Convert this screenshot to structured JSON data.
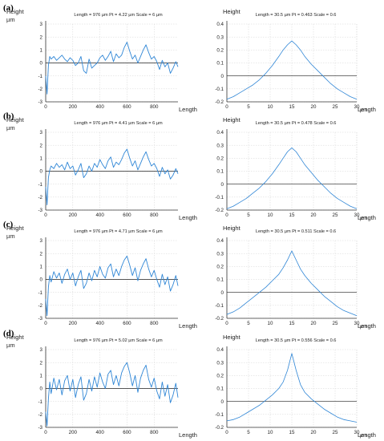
{
  "chart_data": [
    {
      "panel_label": "(a)",
      "profile": {
        "type": "line",
        "header": "Length = 976 µm   Pt = 4.22 µm   Scale = 6 µm",
        "ylabel": "Height",
        "yunit": "µm",
        "xlabel": "Length",
        "xlim": [
          0,
          976
        ],
        "ylim": [
          -3,
          3
        ],
        "xticks": [
          0,
          200,
          400,
          600,
          800
        ],
        "yticks": [
          -3,
          -2,
          -1,
          0,
          1,
          2,
          3
        ],
        "series": [
          {
            "x": [
              0,
              10,
              20,
              30,
              40,
              60,
              80,
              100,
              120,
              140,
              160,
              180,
              200,
              220,
              240,
              260,
              280,
              300,
              320,
              340,
              360,
              380,
              400,
              420,
              440,
              460,
              480,
              500,
              520,
              540,
              560,
              580,
              600,
              620,
              640,
              660,
              680,
              700,
              720,
              740,
              760,
              780,
              800,
              820,
              840,
              860,
              880,
              900,
              920,
              940,
              960,
              976
            ],
            "y": [
              -1.0,
              -2.4,
              -0.2,
              0.5,
              0.3,
              0.5,
              0.2,
              0.4,
              0.6,
              0.3,
              0.1,
              0.4,
              0.2,
              -0.2,
              0.0,
              0.5,
              -0.6,
              -0.8,
              0.3,
              -0.4,
              -0.2,
              0.0,
              0.4,
              0.6,
              0.2,
              0.5,
              0.9,
              0.1,
              0.7,
              0.4,
              0.6,
              1.2,
              1.6,
              0.9,
              0.3,
              0.6,
              0.0,
              0.5,
              1.0,
              1.4,
              0.8,
              0.3,
              0.5,
              0.1,
              -0.5,
              0.2,
              -0.3,
              0.0,
              -0.8,
              -0.4,
              0.1,
              -0.3
            ]
          }
        ]
      },
      "acf": {
        "type": "line",
        "header": "Length = 30.5 µm   Pt = 0.463   Scale = 0.6",
        "ylabel": "Height",
        "xlabel": "Length",
        "xunit": "µm",
        "xlim": [
          0,
          30
        ],
        "ylim": [
          -0.2,
          0.4
        ],
        "xticks": [
          0,
          5,
          10,
          15,
          20,
          25,
          30
        ],
        "yticks": [
          -0.2,
          -0.1,
          0,
          0.1,
          0.2,
          0.3,
          0.4
        ],
        "series": [
          {
            "x": [
              0,
              1.5,
              3,
              4.5,
              6,
              7.5,
              9,
              10.5,
              12,
              13,
              14,
              15,
              16,
              17,
              18,
              19.5,
              21,
              22.5,
              24,
              25.5,
              27,
              28.5,
              30
            ],
            "y": [
              -0.18,
              -0.16,
              -0.13,
              -0.1,
              -0.07,
              -0.03,
              0.02,
              0.08,
              0.15,
              0.2,
              0.24,
              0.27,
              0.24,
              0.2,
              0.15,
              0.09,
              0.04,
              -0.01,
              -0.06,
              -0.1,
              -0.13,
              -0.16,
              -0.18
            ]
          }
        ]
      }
    },
    {
      "panel_label": "(b)",
      "profile": {
        "type": "line",
        "header": "Length = 976 µm   Pt = 4.41 µm   Scale = 6 µm",
        "ylabel": "Height",
        "yunit": "µm",
        "xlabel": "Length",
        "xlim": [
          0,
          976
        ],
        "ylim": [
          -3,
          3
        ],
        "xticks": [
          0,
          200,
          400,
          600,
          800
        ],
        "yticks": [
          -3,
          -2,
          -1,
          0,
          1,
          2,
          3
        ],
        "series": [
          {
            "x": [
              0,
              10,
              20,
              30,
              40,
              60,
              80,
              100,
              120,
              140,
              160,
              180,
              200,
              220,
              240,
              260,
              280,
              300,
              320,
              340,
              360,
              380,
              400,
              420,
              440,
              460,
              480,
              500,
              520,
              540,
              560,
              580,
              600,
              620,
              640,
              660,
              680,
              700,
              720,
              740,
              760,
              780,
              800,
              820,
              840,
              860,
              880,
              900,
              920,
              940,
              960,
              976
            ],
            "y": [
              -1.2,
              -2.6,
              -0.5,
              0.1,
              0.4,
              0.2,
              0.6,
              0.3,
              0.5,
              0.1,
              0.7,
              0.2,
              0.4,
              -0.3,
              0.1,
              0.6,
              -0.5,
              -0.2,
              0.4,
              0.0,
              0.6,
              0.3,
              0.9,
              0.5,
              0.2,
              0.8,
              1.1,
              0.3,
              0.7,
              0.5,
              0.9,
              1.4,
              1.7,
              1.0,
              0.4,
              0.8,
              0.1,
              0.6,
              1.1,
              1.5,
              0.9,
              0.4,
              0.6,
              0.2,
              -0.4,
              0.3,
              -0.2,
              0.1,
              -0.6,
              -0.3,
              0.2,
              -0.2
            ]
          }
        ]
      },
      "acf": {
        "type": "line",
        "header": "Length = 30.5 µm   Pt = 0.478   Scale = 0.6",
        "ylabel": "Height",
        "xlabel": "Length",
        "xunit": "µm",
        "xlim": [
          0,
          30
        ],
        "ylim": [
          -0.2,
          0.4
        ],
        "xticks": [
          0,
          5,
          10,
          15,
          20,
          25,
          30
        ],
        "yticks": [
          -0.2,
          -0.1,
          0,
          0.1,
          0.2,
          0.3,
          0.4
        ],
        "series": [
          {
            "x": [
              0,
              1.5,
              3,
              4.5,
              6,
              7.5,
              9,
              10.5,
              12,
              13,
              14,
              15,
              16,
              17,
              18,
              19.5,
              21,
              22.5,
              24,
              25.5,
              27,
              28.5,
              30
            ],
            "y": [
              -0.19,
              -0.17,
              -0.14,
              -0.11,
              -0.07,
              -0.03,
              0.02,
              0.08,
              0.15,
              0.2,
              0.25,
              0.28,
              0.25,
              0.2,
              0.15,
              0.09,
              0.03,
              -0.02,
              -0.07,
              -0.11,
              -0.14,
              -0.17,
              -0.19
            ]
          }
        ]
      }
    },
    {
      "panel_label": "(c)",
      "profile": {
        "type": "line",
        "header": "Length = 976 µm   Pt = 4.71 µm   Scale = 6 µm",
        "ylabel": "Height",
        "yunit": "µm",
        "xlabel": "Length",
        "xlim": [
          0,
          976
        ],
        "ylim": [
          -3,
          3
        ],
        "xticks": [
          0,
          200,
          400,
          600,
          800
        ],
        "yticks": [
          -3,
          -2,
          -1,
          0,
          1,
          2,
          3
        ],
        "series": [
          {
            "x": [
              0,
              10,
              20,
              30,
              40,
              60,
              80,
              100,
              120,
              140,
              160,
              180,
              200,
              220,
              240,
              260,
              280,
              300,
              320,
              340,
              360,
              380,
              400,
              420,
              440,
              460,
              480,
              500,
              520,
              540,
              560,
              580,
              600,
              620,
              640,
              660,
              680,
              700,
              720,
              740,
              760,
              780,
              800,
              820,
              840,
              860,
              880,
              900,
              920,
              940,
              960,
              976
            ],
            "y": [
              -1.5,
              -2.8,
              -0.6,
              0.3,
              -0.2,
              0.6,
              0.1,
              0.5,
              -0.3,
              0.4,
              0.8,
              0.0,
              0.5,
              -0.5,
              0.2,
              0.7,
              -0.7,
              -0.3,
              0.5,
              -0.1,
              0.7,
              0.2,
              1.0,
              0.4,
              0.1,
              0.9,
              1.2,
              0.2,
              0.8,
              0.3,
              1.0,
              1.5,
              1.8,
              1.1,
              0.3,
              0.9,
              -0.1,
              0.7,
              1.2,
              1.6,
              0.8,
              0.2,
              0.7,
              0.0,
              -0.6,
              0.4,
              -0.4,
              0.2,
              -0.9,
              -0.4,
              0.3,
              -0.5
            ]
          }
        ]
      },
      "acf": {
        "type": "line",
        "header": "Length = 30.5 µm   Pt = 0.511   Scale = 0.6",
        "ylabel": "Height",
        "xlabel": "Length",
        "xunit": "µm",
        "xlim": [
          0,
          30
        ],
        "ylim": [
          -0.2,
          0.4
        ],
        "xticks": [
          0,
          5,
          10,
          15,
          20,
          25,
          30
        ],
        "yticks": [
          -0.2,
          -0.1,
          0,
          0.1,
          0.2,
          0.3,
          0.4
        ],
        "series": [
          {
            "x": [
              0,
              1.5,
              3,
              4.5,
              6,
              7.5,
              9,
              10.5,
              12,
              13,
              14,
              15,
              16,
              17,
              18,
              19.5,
              21,
              22.5,
              24,
              25.5,
              27,
              28.5,
              30
            ],
            "y": [
              -0.17,
              -0.15,
              -0.12,
              -0.08,
              -0.04,
              0.0,
              0.04,
              0.09,
              0.14,
              0.19,
              0.25,
              0.32,
              0.25,
              0.18,
              0.13,
              0.07,
              0.02,
              -0.03,
              -0.07,
              -0.11,
              -0.14,
              -0.16,
              -0.18
            ]
          }
        ]
      }
    },
    {
      "panel_label": "(d)",
      "profile": {
        "type": "line",
        "header": "Length = 976 µm   Pt = 5.02 µm   Scale = 6 µm",
        "ylabel": "Height",
        "yunit": "µm",
        "xlabel": "Length",
        "xlim": [
          0,
          976
        ],
        "ylim": [
          -3,
          3
        ],
        "xticks": [
          0,
          200,
          400,
          600,
          800
        ],
        "yticks": [
          -3,
          -2,
          -1,
          0,
          1,
          2,
          3
        ],
        "series": [
          {
            "x": [
              0,
              10,
              20,
              30,
              40,
              60,
              80,
              100,
              120,
              140,
              160,
              180,
              200,
              220,
              240,
              260,
              280,
              300,
              320,
              340,
              360,
              380,
              400,
              420,
              440,
              460,
              480,
              500,
              520,
              540,
              560,
              580,
              600,
              620,
              640,
              660,
              680,
              700,
              720,
              740,
              760,
              780,
              800,
              820,
              840,
              860,
              880,
              900,
              920,
              940,
              960,
              976
            ],
            "y": [
              -1.8,
              -2.9,
              -0.8,
              0.5,
              -0.4,
              0.8,
              -0.1,
              0.7,
              -0.5,
              0.6,
              1.0,
              -0.2,
              0.7,
              -0.7,
              0.3,
              0.9,
              -0.9,
              -0.4,
              0.7,
              -0.2,
              0.9,
              0.1,
              1.2,
              0.5,
              0.0,
              1.1,
              1.4,
              0.3,
              1.0,
              0.2,
              1.2,
              1.7,
              2.0,
              1.2,
              0.2,
              1.0,
              -0.3,
              0.8,
              1.4,
              1.8,
              0.7,
              0.1,
              0.8,
              -0.2,
              -0.8,
              0.5,
              -0.6,
              0.3,
              -1.1,
              -0.5,
              0.4,
              -0.7
            ]
          }
        ]
      },
      "acf": {
        "type": "line",
        "header": "Length = 30.5 µm   Pt = 0.556   Scale = 0.6",
        "ylabel": "Height",
        "xlabel": "Length",
        "xunit": "µm",
        "xlim": [
          0,
          30
        ],
        "ylim": [
          -0.2,
          0.4
        ],
        "xticks": [
          0,
          5,
          10,
          15,
          20,
          25,
          30
        ],
        "yticks": [
          -0.2,
          -0.1,
          0,
          0.1,
          0.2,
          0.3,
          0.4
        ],
        "series": [
          {
            "x": [
              0,
              1.5,
              3,
              4.5,
              6,
              7.5,
              9,
              10.5,
              12,
              13,
              14,
              15,
              16,
              17,
              18,
              19.5,
              21,
              22.5,
              24,
              25.5,
              27,
              28.5,
              30
            ],
            "y": [
              -0.15,
              -0.14,
              -0.12,
              -0.09,
              -0.06,
              -0.03,
              0.01,
              0.05,
              0.1,
              0.15,
              0.24,
              0.37,
              0.24,
              0.13,
              0.07,
              0.02,
              -0.02,
              -0.06,
              -0.09,
              -0.12,
              -0.14,
              -0.15,
              -0.16
            ]
          }
        ]
      }
    }
  ],
  "colors": {
    "series": "#2f86d6",
    "grid": "#d3d3d3",
    "axis": "#333333",
    "zero_line": "#222222"
  }
}
